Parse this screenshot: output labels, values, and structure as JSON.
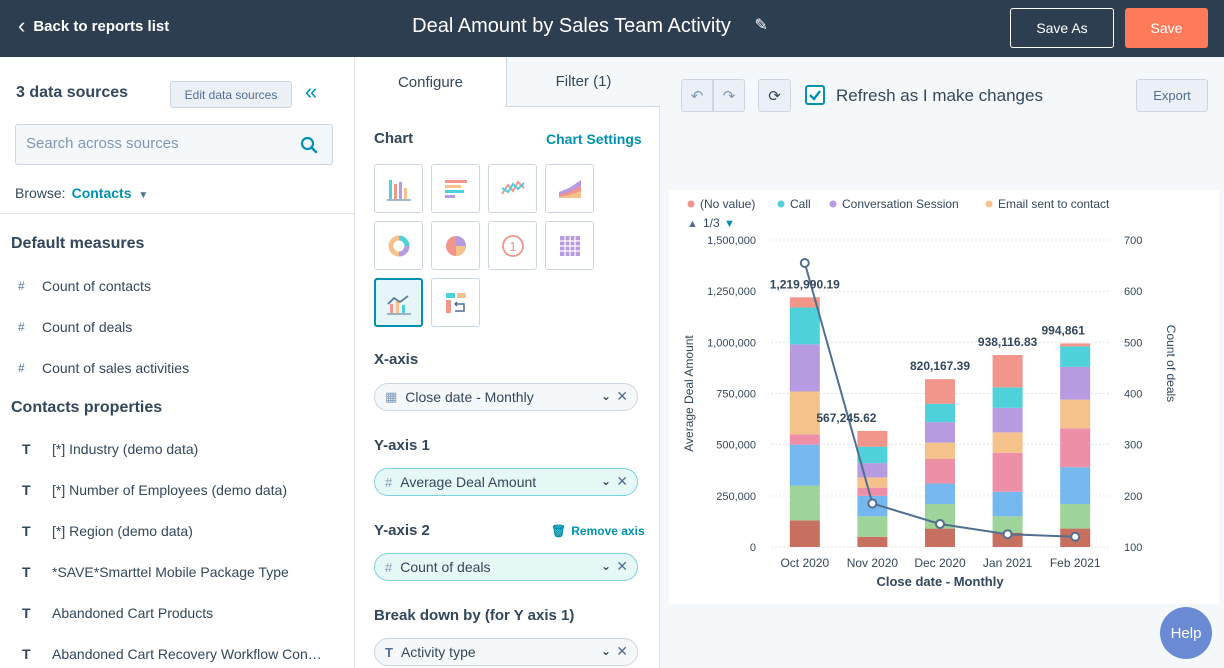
{
  "header": {
    "back_label": "Back to reports list",
    "title": "Deal Amount by Sales Team Activity",
    "save_as_label": "Save As",
    "save_label": "Save"
  },
  "sidebar": {
    "data_sources_title": "3 data sources",
    "edit_label": "Edit data sources",
    "search_placeholder": "Search across sources",
    "browse_label": "Browse:",
    "browse_value": "Contacts",
    "default_measures_title": "Default measures",
    "measures": [
      "Count of contacts",
      "Count of deals",
      "Count of sales activities"
    ],
    "properties_title": "Contacts properties",
    "properties": [
      "[*] Industry (demo data)",
      "[*] Number of Employees (demo data)",
      "[*] Region (demo data)",
      "*SAVE*Smarttel Mobile Package Type",
      "Abandoned Cart Products",
      "Abandoned Cart Recovery Workflow Con…"
    ],
    "measure_type_glyph": "#",
    "property_type_glyph": "T"
  },
  "config": {
    "tabs": [
      "Configure",
      "Filter (1)"
    ],
    "chart_label": "Chart",
    "chart_settings_label": "Chart Settings",
    "xaxis_label": "X-axis",
    "xaxis_value": "Close date - Monthly",
    "yaxis1_label": "Y-axis 1",
    "yaxis1_value": "Average Deal Amount",
    "yaxis2_label": "Y-axis 2",
    "yaxis2_value": "Count of deals",
    "remove_axis_label": "Remove axis",
    "breakdown_label": "Break down by (for Y axis 1)",
    "breakdown_value": "Activity type"
  },
  "toolbar": {
    "refresh_label": "Refresh as I make changes",
    "export_label": "Export",
    "help_label": "Help"
  },
  "colors": {
    "accent": "#0091ae",
    "save": "#ff7a59",
    "topbar": "#2d3e50",
    "line": "#516f90"
  },
  "chart_data": {
    "type": "bar",
    "stacked": true,
    "categories": [
      "Oct 2020",
      "Nov 2020",
      "Dec 2020",
      "Jan 2021",
      "Feb 2021"
    ],
    "xlabel": "Close date - Monthly",
    "ylabel": "Average Deal Amount",
    "y2label": "Count of deals",
    "ylim": [
      0,
      1500000
    ],
    "y2lim": [
      100,
      700
    ],
    "yticks": [
      "0",
      "250,000",
      "500,000",
      "750,000",
      "1,000,000",
      "1,250,000",
      "1,500,000"
    ],
    "y2ticks": [
      "100",
      "200",
      "300",
      "400",
      "500",
      "600",
      "700"
    ],
    "legend": {
      "entries": [
        {
          "name": "(No value)",
          "color": "#f2958a"
        },
        {
          "name": "Call",
          "color": "#4fd1d9"
        },
        {
          "name": "Conversation Session",
          "color": "#b69be0"
        },
        {
          "name": "Email sent to contact",
          "color": "#f5c28b"
        }
      ],
      "page": "1/3",
      "position": "top"
    },
    "totals": [
      1219990.19,
      567245.62,
      820167.39,
      938116.83,
      994861
    ],
    "total_labels": [
      "1,219,990.19",
      "567,245.62",
      "820,167.39",
      "938,116.83",
      "994,861"
    ],
    "stacks": [
      {
        "color": "#c8705f",
        "values": [
          130000,
          50000,
          90000,
          70000,
          90000
        ]
      },
      {
        "color": "#9ed49a",
        "values": [
          170000,
          100000,
          120000,
          80000,
          120000
        ]
      },
      {
        "color": "#75b8f0",
        "values": [
          200000,
          100000,
          100000,
          120000,
          180000
        ]
      },
      {
        "color": "#ee8fa8",
        "values": [
          50000,
          40000,
          120000,
          190000,
          190000
        ]
      },
      {
        "color": "#f5c28b",
        "values": [
          210000,
          50000,
          80000,
          100000,
          140000
        ]
      },
      {
        "color": "#b69be0",
        "values": [
          230000,
          70000,
          100000,
          120000,
          160000
        ]
      },
      {
        "color": "#4fd1d9",
        "values": [
          180000,
          80000,
          90000,
          100000,
          100000
        ]
      },
      {
        "color": "#f2958a",
        "values": [
          49990.19,
          77245.62,
          120167.39,
          158116.83,
          14861
        ]
      }
    ],
    "line_series": {
      "name": "Count of deals",
      "values": [
        655,
        185,
        145,
        125,
        120
      ]
    }
  }
}
